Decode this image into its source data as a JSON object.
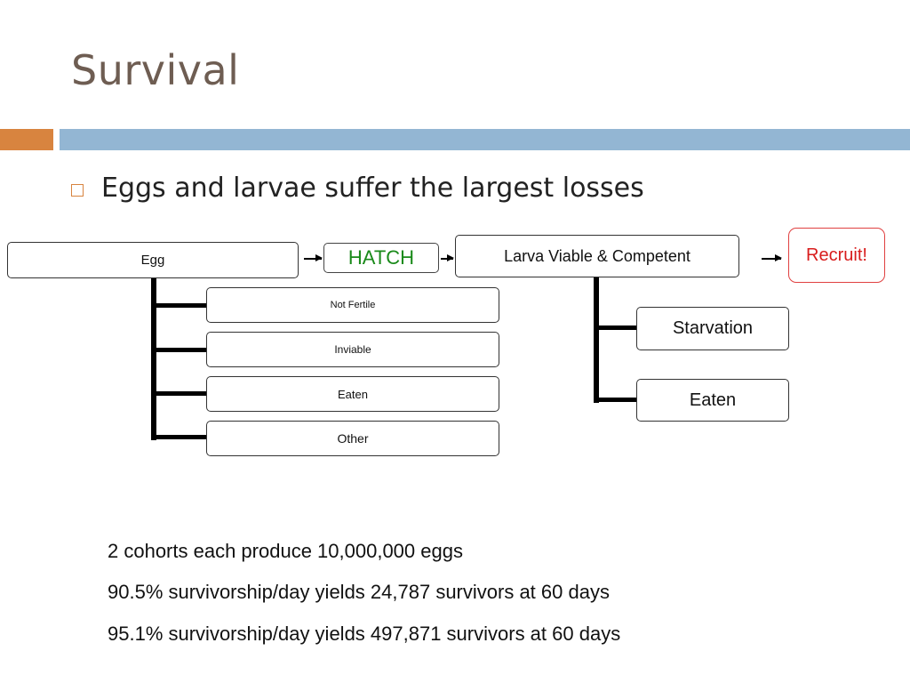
{
  "slide": {
    "title": "Survival",
    "bullet": "Eggs and larvae suffer the largest losses"
  },
  "diagram": {
    "egg": "Egg",
    "hatch": "HATCH",
    "larva": "Larva Viable & Competent",
    "recruit": "Recruit!",
    "egg_losses": [
      "Not Fertile",
      "Inviable",
      "Eaten",
      "Other"
    ],
    "larva_losses": [
      "Starvation",
      "Eaten"
    ]
  },
  "stats": [
    "2 cohorts each produce 10,000,000 eggs",
    "90.5% survivorship/day yields 24,787 survivors at 60 days",
    "95.1% survivorship/day yields 497,871 survivors at 60 days"
  ],
  "colors": {
    "title": "#6e5d52",
    "accent_orange": "#d8843f",
    "accent_blue": "#93b6d3",
    "hatch_text": "#1a8a1a",
    "recruit": "#d81c1c"
  }
}
